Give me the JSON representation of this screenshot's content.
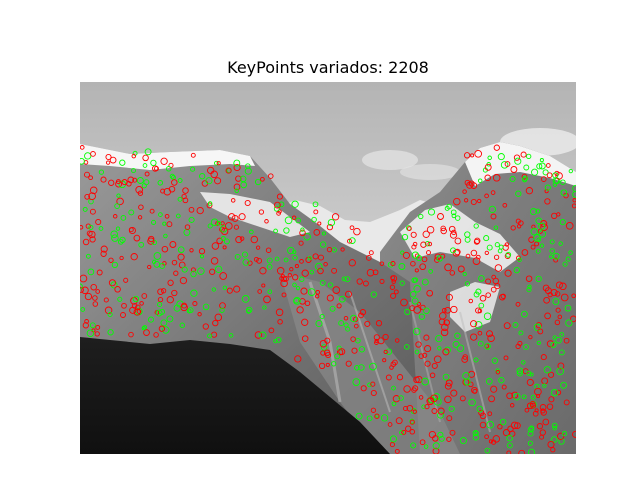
{
  "figure": {
    "title": "KeyPoints variados: 2208"
  },
  "image": {
    "description_tag": "grayscale-mountain-photo-with-keypoints",
    "keypoint_colors": {
      "outer": "#ff0000",
      "inner": "#00ff00"
    }
  }
}
